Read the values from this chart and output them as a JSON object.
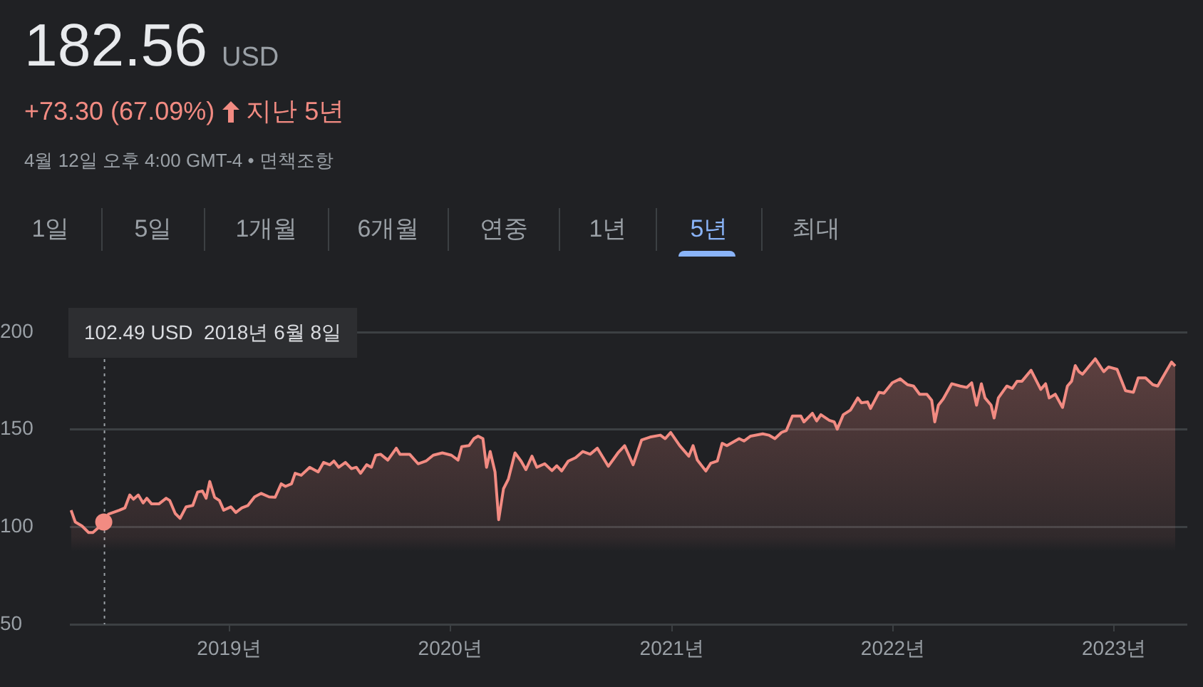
{
  "chart_data": {
    "type": "area",
    "title": "182.56",
    "annotations": [
      "USD",
      "+73.30 (67.09%)",
      "지난 5년",
      "4월 12일 오후 4:00 GMT-4 • 면책조항",
      "1일",
      "5일",
      "1개월",
      "6개월",
      "연중",
      "1년",
      "5년",
      "최대"
    ],
    "ref_lines": [
      {
        "axis": "x",
        "value": "2018-06-08",
        "label": "102.49 USD  2018년 6월 8일",
        "color": "#9aa0a6",
        "line_style": "dotted"
      }
    ],
    "series": [
      {
        "type": "scatter",
        "marker": "circle",
        "color": "#f28b82",
        "x": [
          "2018-06-08"
        ],
        "values": [
          102.49
        ]
      },
      {
        "marker": "none",
        "color": "#f28b82",
        "x": [
          "2018-04-15",
          "2018-04-22",
          "2018-05-03",
          "2018-05-14",
          "2018-05-21",
          "2018-05-29",
          "2018-06-08",
          "2018-06-16",
          "2018-07-04",
          "2018-07-13",
          "2018-07-21",
          "2018-07-27",
          "2018-08-04",
          "2018-08-12",
          "2018-08-18",
          "2018-08-26",
          "2018-09-07",
          "2018-09-19",
          "2018-09-25",
          "2018-10-04",
          "2018-10-12",
          "2018-10-22",
          "2018-11-02",
          "2018-11-10",
          "2018-11-18",
          "2018-11-24",
          "2018-11-30",
          "2018-12-08",
          "2018-12-16",
          "2018-12-23",
          "2019-01-04",
          "2019-01-12",
          "2019-01-22",
          "2019-02-01",
          "2019-02-12",
          "2019-02-23",
          "2019-03-08",
          "2019-03-18",
          "2019-03-28",
          "2019-04-04",
          "2019-04-14",
          "2019-04-20",
          "2019-04-30",
          "2019-05-14",
          "2019-05-28",
          "2019-06-06",
          "2019-06-16",
          "2019-06-23",
          "2019-07-01",
          "2019-07-12",
          "2019-07-22",
          "2019-07-30",
          "2019-08-06",
          "2019-08-16",
          "2019-08-24",
          "2019-08-31",
          "2019-09-08",
          "2019-09-20",
          "2019-10-04",
          "2019-10-10",
          "2019-10-26",
          "2019-11-09",
          "2019-11-22",
          "2019-12-04",
          "2019-12-19",
          "2020-01-03",
          "2020-01-14",
          "2020-01-20",
          "2020-02-01",
          "2020-02-09",
          "2020-02-16",
          "2020-02-24",
          "2020-03-01",
          "2020-03-07",
          "2020-03-15",
          "2020-03-21",
          "2020-03-29",
          "2020-04-06",
          "2020-04-17",
          "2020-04-27",
          "2020-05-05",
          "2020-05-15",
          "2020-05-23",
          "2020-06-05",
          "2020-06-17",
          "2020-06-25",
          "2020-07-03",
          "2020-07-14",
          "2020-07-26",
          "2020-08-07",
          "2020-08-19",
          "2020-08-31",
          "2020-09-18",
          "2020-10-04",
          "2020-10-15",
          "2020-10-29",
          "2020-11-12",
          "2020-11-26",
          "2020-12-13",
          "2020-12-21",
          "2020-12-30",
          "2021-01-14",
          "2021-01-29",
          "2021-02-05",
          "2021-02-12",
          "2021-02-26",
          "2021-03-06",
          "2021-03-17",
          "2021-03-25",
          "2021-04-02",
          "2021-04-22",
          "2021-04-30",
          "2021-05-11",
          "2021-05-31",
          "2021-06-10",
          "2021-06-20",
          "2021-07-01",
          "2021-07-09",
          "2021-07-19",
          "2021-08-02",
          "2021-08-07",
          "2021-08-21",
          "2021-08-28",
          "2021-09-04",
          "2021-09-18",
          "2021-09-26",
          "2021-10-01",
          "2021-10-11",
          "2021-10-23",
          "2021-11-04",
          "2021-11-10",
          "2021-11-20",
          "2021-11-25",
          "2021-12-09",
          "2021-12-17",
          "2021-12-31",
          "2022-01-13",
          "2022-01-25",
          "2022-02-04",
          "2022-02-14",
          "2022-02-26",
          "2022-03-06",
          "2022-03-11",
          "2022-03-17",
          "2022-03-25",
          "2022-04-08",
          "2022-04-22",
          "2022-05-03",
          "2022-05-11",
          "2022-05-19",
          "2022-05-27",
          "2022-06-02",
          "2022-06-12",
          "2022-06-17",
          "2022-06-24",
          "2022-07-08",
          "2022-07-17",
          "2022-07-25",
          "2022-08-02",
          "2022-08-17",
          "2022-09-02",
          "2022-09-10",
          "2022-09-16",
          "2022-09-26",
          "2022-10-08",
          "2022-10-16",
          "2022-10-23",
          "2022-10-29",
          "2022-11-04",
          "2022-11-10",
          "2022-12-01",
          "2022-12-15",
          "2022-12-23",
          "2023-01-06",
          "2023-01-20",
          "2023-02-02",
          "2023-02-10",
          "2023-02-22",
          "2023-03-06",
          "2023-03-14",
          "2023-04-06",
          "2023-04-12"
        ],
        "values": [
          108.6,
          102.5,
          100.5,
          97.1,
          97.1,
          99.3,
          102.49,
          106.6,
          108.6,
          109.8,
          116.4,
          114.2,
          116.4,
          112.3,
          114.7,
          111.8,
          111.8,
          114.7,
          113.5,
          106.9,
          104.4,
          110.3,
          111.0,
          117.9,
          118.4,
          114.7,
          123.3,
          115.2,
          113.5,
          108.6,
          110.3,
          107.4,
          109.8,
          111.0,
          115.4,
          117.2,
          115.4,
          115.2,
          122.1,
          120.8,
          122.1,
          127.5,
          126.5,
          130.6,
          128.2,
          133.1,
          131.9,
          133.8,
          130.6,
          133.1,
          129.9,
          130.6,
          127.5,
          131.9,
          130.6,
          136.8,
          137.3,
          134.3,
          140.4,
          137.3,
          137.3,
          132.4,
          133.8,
          136.8,
          138.0,
          136.8,
          134.3,
          141.2,
          141.7,
          145.3,
          146.6,
          145.3,
          130.6,
          138.7,
          128.2,
          103.7,
          119.6,
          124.5,
          138.0,
          133.8,
          129.4,
          136.3,
          130.6,
          132.4,
          128.9,
          131.4,
          128.7,
          133.8,
          135.5,
          138.7,
          137.3,
          140.4,
          131.1,
          138.0,
          141.7,
          131.9,
          144.6,
          146.1,
          147.1,
          145.3,
          148.5,
          141.7,
          136.3,
          141.7,
          134.3,
          128.7,
          132.6,
          133.8,
          142.9,
          141.7,
          145.3,
          144.1,
          146.6,
          147.8,
          147.1,
          145.3,
          148.5,
          149.5,
          156.9,
          156.9,
          153.9,
          158.3,
          154.4,
          157.6,
          154.7,
          153.9,
          150.2,
          157.6,
          160.0,
          166.2,
          163.7,
          164.2,
          160.8,
          169.1,
          168.6,
          174.0,
          176.0,
          173.0,
          172.3,
          168.1,
          168.1,
          165.0,
          153.9,
          162.5,
          165.7,
          173.5,
          172.3,
          171.6,
          174.0,
          162.5,
          173.5,
          166.2,
          162.5,
          155.9,
          166.2,
          172.3,
          171.1,
          174.8,
          174.8,
          180.4,
          170.6,
          173.5,
          166.2,
          168.1,
          161.3,
          172.3,
          174.8,
          182.8,
          179.7,
          178.4,
          186.3,
          179.7,
          182.1,
          180.9,
          169.9,
          169.1,
          176.5,
          176.5,
          173.0,
          172.3,
          184.6,
          182.56
        ]
      }
    ],
    "xlim": [
      "2018-04-13",
      "2023-05-02"
    ],
    "xticks": [
      {
        "value": "2019",
        "label": "2019년"
      },
      {
        "value": "2020",
        "label": "2020년"
      },
      {
        "value": "2021",
        "label": "2021년"
      },
      {
        "value": "2022",
        "label": "2022년"
      },
      {
        "value": "2023",
        "label": "2023년"
      }
    ],
    "ylim": [
      50,
      200
    ],
    "yticks": [
      50,
      100,
      150,
      200
    ],
    "grid": "y",
    "legend": false
  }
}
